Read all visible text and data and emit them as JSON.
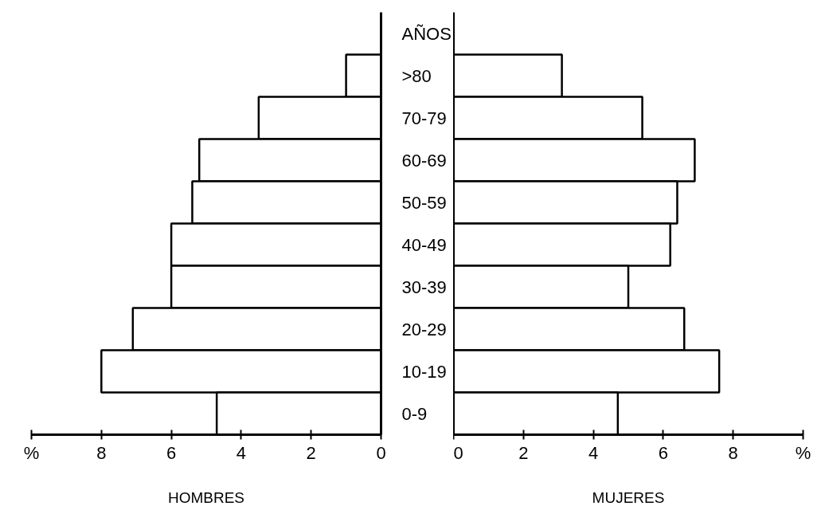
{
  "chart_data": [
    {
      "type": "bar",
      "orientation": "horizontal",
      "xlabel": "HOMBRES",
      "annotations": [
        "AÑOS"
      ],
      "categories": [
        ">80",
        "70-79",
        "60-69",
        "50-59",
        "40-49",
        "30-39",
        "20-29",
        "10-19",
        "0-9"
      ],
      "values": [
        1.0,
        3.5,
        5.2,
        5.4,
        6.0,
        6.0,
        7.1,
        8.0,
        4.7
      ],
      "color": "#ffffff",
      "xlim": [
        10,
        0
      ],
      "xticks": [
        {
          "value": 10,
          "label": "%"
        },
        8,
        6,
        4,
        2,
        0
      ],
      "grid": false
    },
    {
      "type": "bar",
      "orientation": "horizontal",
      "xlabel": "MUJERES",
      "tick_labels": "x",
      "values": [
        3.1,
        5.4,
        6.9,
        6.4,
        6.2,
        5.0,
        6.6,
        7.6,
        4.7
      ],
      "color": "#ffffff",
      "xlim": [
        0,
        10
      ],
      "xticks": [
        0,
        2,
        4,
        6,
        8,
        {
          "value": 10,
          "label": "%"
        }
      ],
      "grid": false
    }
  ]
}
